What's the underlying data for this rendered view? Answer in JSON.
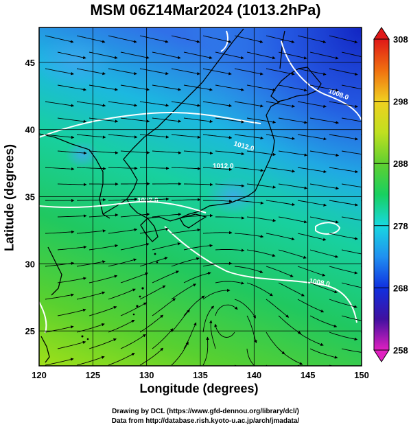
{
  "title": "MSM 06Z14Mar2024 (1013.2hPa)",
  "map": {
    "xlabel": "Longitude (degrees)",
    "ylabel": "Latitude  (degrees)",
    "lon_ticks": [
      "120",
      "125",
      "130",
      "135",
      "140",
      "145",
      "150"
    ],
    "lat_ticks": [
      "25",
      "30",
      "35",
      "40",
      "45"
    ],
    "lon_range": [
      120,
      150
    ],
    "lat_range": [
      22.4,
      47.6
    ],
    "contour_labels": [
      "1008.0",
      "1012.0",
      "1012.0",
      "1012.0",
      "1008.0"
    ],
    "projection": "equirectangular",
    "grid": true
  },
  "colorbar": {
    "ticks": [
      "258",
      "268",
      "278",
      "288",
      "298",
      "308"
    ],
    "range": [
      258,
      308
    ],
    "colors": [
      "#e020c0",
      "#4010a0",
      "#1030e0",
      "#2090f0",
      "#18d8e0",
      "#18d060",
      "#60d030",
      "#c0e020",
      "#f0d020",
      "#f07010",
      "#e01818"
    ]
  },
  "credits": {
    "line1": "Drawing by DCL (https://www.gfd-dennou.org/library/dcl/)",
    "line2": "Data from http://database.rish.kyoto-u.ac.jp/arch/jmadata/"
  }
}
